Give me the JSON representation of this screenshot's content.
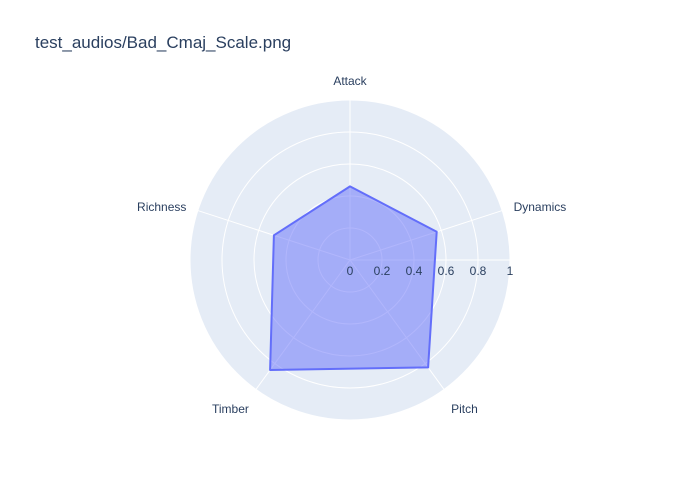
{
  "chart_data": {
    "type": "radar",
    "title": "test_audios/Bad_Cmaj_Scale.png",
    "categories": [
      "Attack",
      "Dynamics",
      "Pitch",
      "Timber",
      "Richness"
    ],
    "series": [
      {
        "values": [
          0.46,
          0.57,
          0.83,
          0.85,
          0.5
        ]
      }
    ],
    "radial_range": [
      0,
      1
    ],
    "radial_ticks": [
      "0",
      "0.2",
      "0.4",
      "0.6",
      "0.8",
      "1"
    ],
    "grid": true,
    "legend": "none",
    "colors": {
      "background": "#e5ecf6",
      "grid": "#ffffff",
      "line": "#636efa",
      "fill": "rgba(99,110,250,0.5)",
      "text": "#2a3f5f"
    }
  }
}
